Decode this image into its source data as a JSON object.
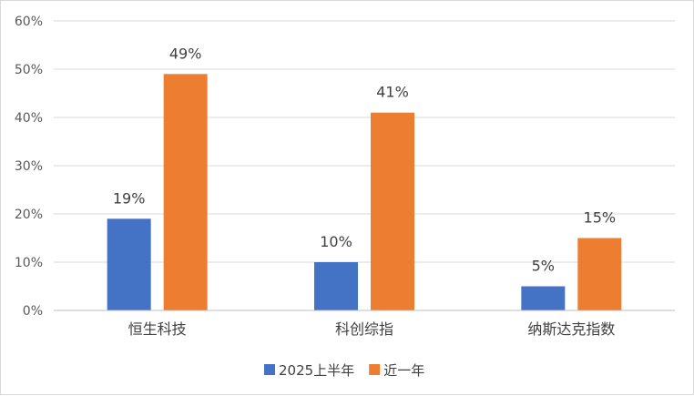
{
  "chart_data": {
    "type": "bar",
    "categories": [
      "恒生科技",
      "科创综指",
      "纳斯达克指数"
    ],
    "series": [
      {
        "name": "2025上半年",
        "values": [
          19,
          10,
          5
        ],
        "labels": [
          "19%",
          "10%",
          "5%"
        ],
        "color": "#4472C4"
      },
      {
        "name": "近一年",
        "values": [
          49,
          41,
          15
        ],
        "labels": [
          "49%",
          "41%",
          "15%"
        ],
        "color": "#ED7D31"
      }
    ],
    "title": "",
    "xlabel": "",
    "ylabel": "",
    "ylim": [
      0,
      60
    ],
    "yticks": [
      "0%",
      "10%",
      "20%",
      "30%",
      "40%",
      "50%",
      "60%"
    ],
    "grid": true,
    "legend_position": "bottom",
    "gridline_color": "#d9d9d9",
    "axis_color": "#bfbfbf"
  }
}
